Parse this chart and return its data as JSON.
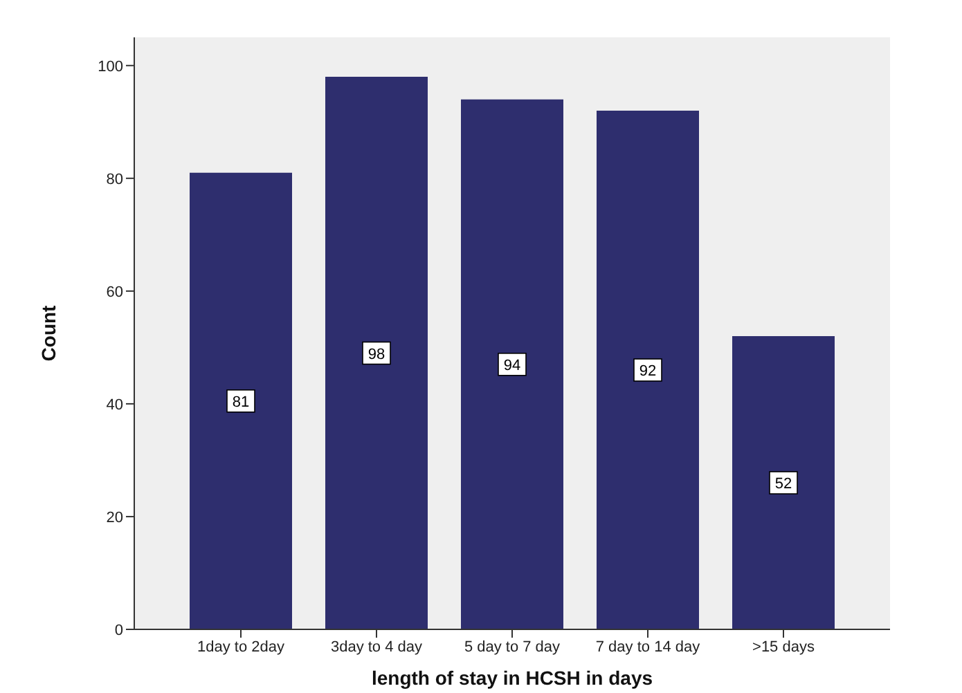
{
  "chart_data": {
    "type": "bar",
    "xlabel": "length of stay in HCSH in days",
    "ylabel": "Count",
    "categories": [
      "1day to 2day",
      "3day to 4 day",
      "5 day to 7 day",
      "7 day to 14 day",
      ">15 days"
    ],
    "values": [
      81,
      98,
      94,
      92,
      52
    ],
    "color": "#2e2e6e",
    "ylim": [
      0,
      105
    ],
    "yticks": [
      0,
      20,
      40,
      60,
      80,
      100
    ],
    "data_labels": true,
    "grid": false
  }
}
